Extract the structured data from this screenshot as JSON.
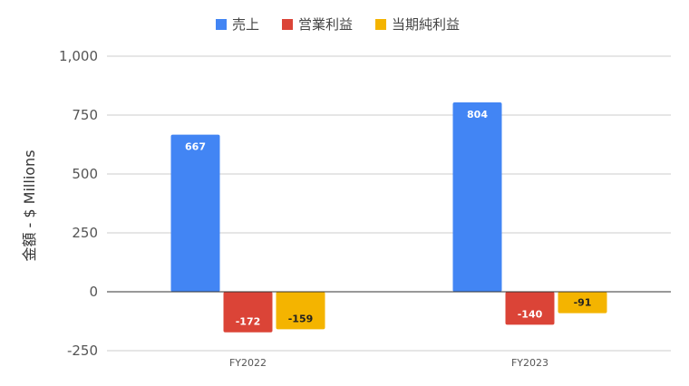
{
  "chart_data": {
    "type": "bar",
    "categories": [
      "FY2022",
      "FY2023"
    ],
    "series": [
      {
        "name": "売上",
        "color": "#4285f4",
        "label_color": "#ffffff",
        "values": [
          667,
          804
        ]
      },
      {
        "name": "営業利益",
        "color": "#db4437",
        "label_color": "#ffffff",
        "values": [
          -172,
          -140
        ]
      },
      {
        "name": "当期純利益",
        "color": "#f4b400",
        "label_color": "#222222",
        "values": [
          -159,
          -91
        ]
      }
    ],
    "data_labels": [
      [
        "667",
        "804"
      ],
      [
        "-172",
        "-140"
      ],
      [
        "-159",
        "-91"
      ]
    ],
    "ylabel": "金額 - $ Millions",
    "ylim": [
      -250,
      1000
    ],
    "yticks": [
      -250,
      0,
      250,
      500,
      750,
      1000
    ],
    "ytick_labels": [
      "-250",
      "0",
      "250",
      "500",
      "750",
      "1,000"
    ],
    "grid": true,
    "legend_position": "top"
  }
}
